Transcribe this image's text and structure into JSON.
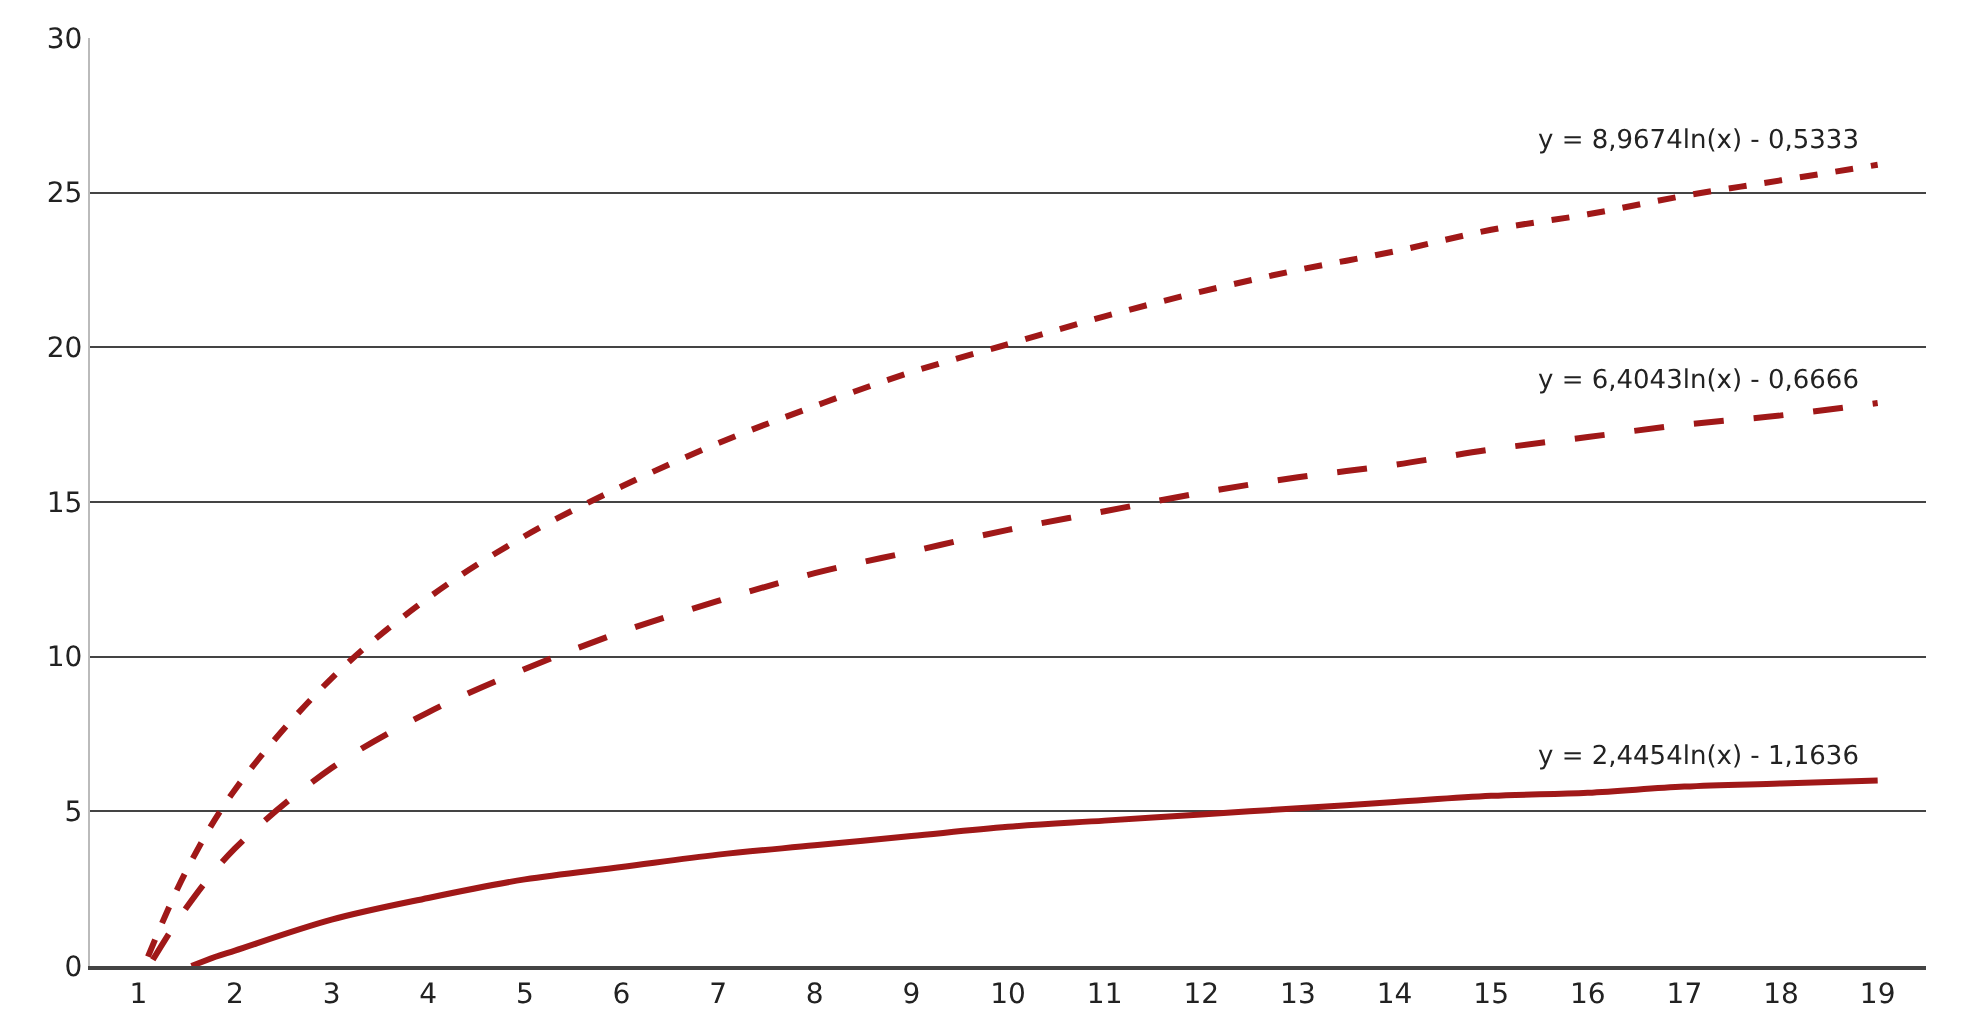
{
  "chart_data": {
    "type": "line",
    "xlim": [
      0.5,
      19.5
    ],
    "xticks": [
      1,
      2,
      3,
      4,
      5,
      6,
      7,
      8,
      9,
      10,
      11,
      12,
      13,
      14,
      15,
      16,
      17,
      18,
      19
    ],
    "ylim": [
      0,
      30
    ],
    "yticks": [
      0,
      5,
      10,
      15,
      20,
      25,
      30
    ],
    "grid": "y",
    "marker": "none",
    "series": [
      {
        "color": "#a01818",
        "line_style": "dotted",
        "x": [
          1.1,
          1.5,
          2,
          3,
          4,
          5,
          6,
          7,
          8,
          9,
          10,
          11,
          12,
          13,
          14,
          15,
          16,
          17,
          18,
          19
        ],
        "values": [
          0.3,
          3.1,
          5.7,
          9.3,
          11.9,
          13.9,
          15.5,
          16.9,
          18.1,
          19.2,
          20.1,
          21.0,
          21.8,
          22.5,
          23.1,
          23.8,
          24.3,
          24.9,
          25.4,
          25.9
        ]
      },
      {
        "color": "#a01818",
        "line_style": "dashed",
        "x": [
          1.15,
          1.5,
          2,
          3,
          4,
          5,
          6,
          7,
          8,
          9,
          10,
          11,
          12,
          13,
          14,
          15,
          16,
          17,
          18,
          19
        ],
        "values": [
          0.2,
          1.9,
          3.8,
          6.4,
          8.2,
          9.6,
          10.8,
          11.8,
          12.7,
          13.4,
          14.1,
          14.7,
          15.3,
          15.8,
          16.2,
          16.7,
          17.1,
          17.5,
          17.8,
          18.2
        ]
      },
      {
        "color": "#a01818",
        "line_style": "solid",
        "x": [
          1.55,
          1.8,
          2,
          3,
          4,
          5,
          6,
          7,
          8,
          9,
          10,
          11,
          12,
          13,
          14,
          15,
          16,
          17,
          18,
          19
        ],
        "values": [
          0.0,
          0.3,
          0.5,
          1.5,
          2.2,
          2.8,
          3.2,
          3.6,
          3.9,
          4.2,
          4.5,
          4.7,
          4.9,
          5.1,
          5.3,
          5.5,
          5.6,
          5.8,
          5.9,
          6.0
        ]
      }
    ],
    "annotations": [
      "y = 8,9674ln(x) - 0,5333",
      "y = 6,4043ln(x) - 0,6666",
      "y = 2,4454ln(x) - 1,1636"
    ]
  }
}
